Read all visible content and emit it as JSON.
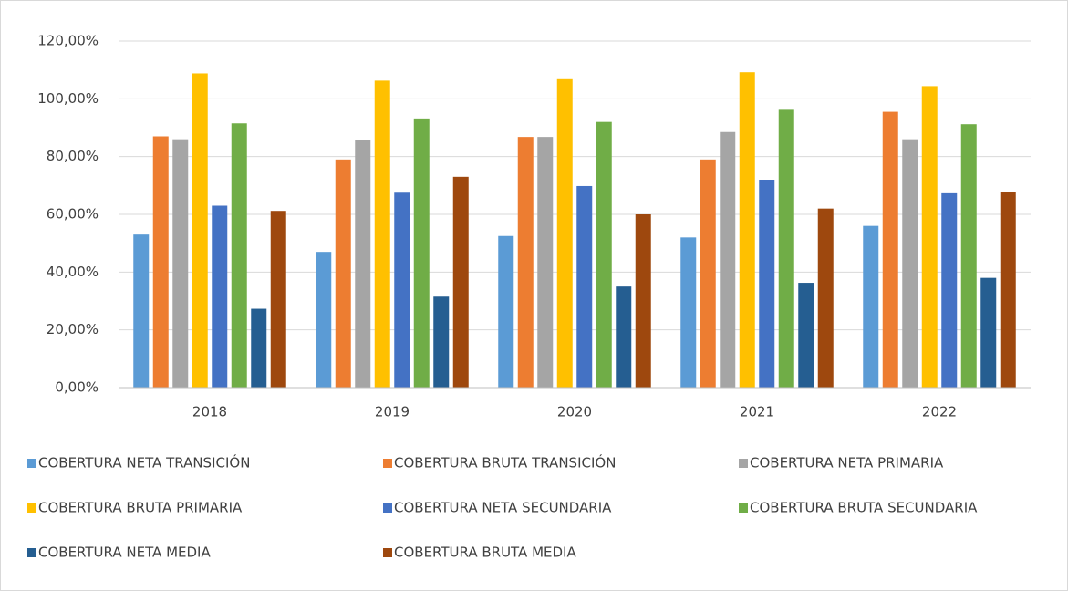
{
  "chart_data": {
    "type": "bar",
    "categories": [
      "2018",
      "2019",
      "2020",
      "2021",
      "2022"
    ],
    "series": [
      {
        "name": "COBERTURA NETA TRANSICIÓN",
        "color": "#5b9bd5",
        "values": [
          53,
          47,
          52.5,
          52,
          56
        ]
      },
      {
        "name": "COBERTURA BRUTA TRANSICIÓN",
        "color": "#ed7d31",
        "values": [
          87,
          79,
          86.8,
          79,
          95.5
        ]
      },
      {
        "name": "COBERTURA NETA PRIMARIA",
        "color": "#a5a5a5",
        "values": [
          86,
          85.8,
          86.8,
          88.5,
          86
        ]
      },
      {
        "name": "COBERTURA BRUTA PRIMARIA",
        "color": "#ffc000",
        "values": [
          108.8,
          106.3,
          106.8,
          109.2,
          104.4
        ]
      },
      {
        "name": "COBERTURA NETA SECUNDARIA",
        "color": "#4472c4",
        "values": [
          63,
          67.5,
          69.8,
          72,
          67.3
        ]
      },
      {
        "name": "COBERTURA BRUTA SECUNDARIA",
        "color": "#70ad47",
        "values": [
          91.5,
          93.2,
          92,
          96.2,
          91.2
        ]
      },
      {
        "name": "COBERTURA NETA MEDIA",
        "color": "#255e91",
        "values": [
          27.3,
          31.5,
          35,
          36.3,
          38
        ]
      },
      {
        "name": "COBERTURA BRUTA MEDIA",
        "color": "#9e480e",
        "values": [
          61.2,
          73,
          60,
          62,
          67.8
        ]
      }
    ],
    "ylim": [
      0,
      120
    ],
    "yticks": [
      {
        "value": 0,
        "label": "0,00%"
      },
      {
        "value": 20,
        "label": "20,00%"
      },
      {
        "value": 40,
        "label": "40,00%"
      },
      {
        "value": 60,
        "label": "60,00%"
      },
      {
        "value": 80,
        "label": "80,00%"
      },
      {
        "value": 100,
        "label": "100,00%"
      },
      {
        "value": 120,
        "label": "120,00%"
      }
    ],
    "grid": true,
    "legend": "bottom"
  }
}
